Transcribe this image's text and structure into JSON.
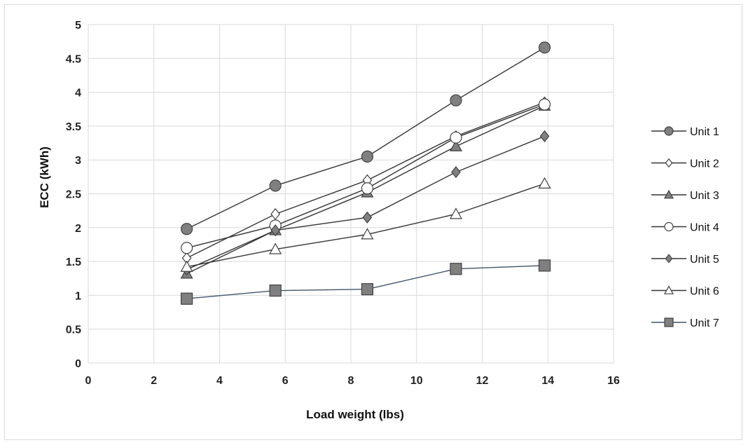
{
  "chart_data": {
    "type": "line",
    "title": "",
    "xlabel": "Load weight (lbs)",
    "ylabel": "ECC (kWh)",
    "xlim": [
      0,
      16
    ],
    "ylim": [
      0,
      5
    ],
    "x_ticks": [
      "0",
      "2",
      "4",
      "6",
      "8",
      "10",
      "12",
      "14",
      "16"
    ],
    "y_ticks": [
      "0",
      "0.5",
      "1",
      "1.5",
      "2",
      "2.5",
      "3",
      "3.5",
      "4",
      "4.5",
      "5"
    ],
    "grid": "vertical and horizontal",
    "legend_position": "right",
    "x": [
      3,
      5.7,
      8.5,
      11.2,
      13.9
    ],
    "series": [
      {
        "name": "Unit 1",
        "values": [
          1.98,
          2.62,
          3.05,
          3.88,
          4.66
        ],
        "marker": "circle",
        "fill": "#808080",
        "line": "#333333"
      },
      {
        "name": "Unit 2",
        "values": [
          1.55,
          2.2,
          2.7,
          3.35,
          3.85
        ],
        "marker": "diamond",
        "fill": "#ffffff",
        "line": "#333333"
      },
      {
        "name": "Unit 3",
        "values": [
          1.32,
          1.96,
          2.52,
          3.2,
          3.8
        ],
        "marker": "triangle",
        "fill": "#808080",
        "line": "#333333"
      },
      {
        "name": "Unit 4",
        "values": [
          1.7,
          2.03,
          2.58,
          3.33,
          3.82
        ],
        "marker": "circle",
        "fill": "#ffffff",
        "line": "#333333"
      },
      {
        "name": "Unit 5",
        "values": [
          1.38,
          1.96,
          2.15,
          2.82,
          3.35
        ],
        "marker": "diamond",
        "fill": "#808080",
        "line": "#333333"
      },
      {
        "name": "Unit 6",
        "values": [
          1.42,
          1.68,
          1.9,
          2.2,
          2.65
        ],
        "marker": "triangle",
        "fill": "#ffffff",
        "line": "#333333"
      },
      {
        "name": "Unit 7",
        "values": [
          0.95,
          1.07,
          1.09,
          1.39,
          1.44
        ],
        "marker": "square",
        "fill": "#808080",
        "line": "#44546a"
      }
    ]
  }
}
